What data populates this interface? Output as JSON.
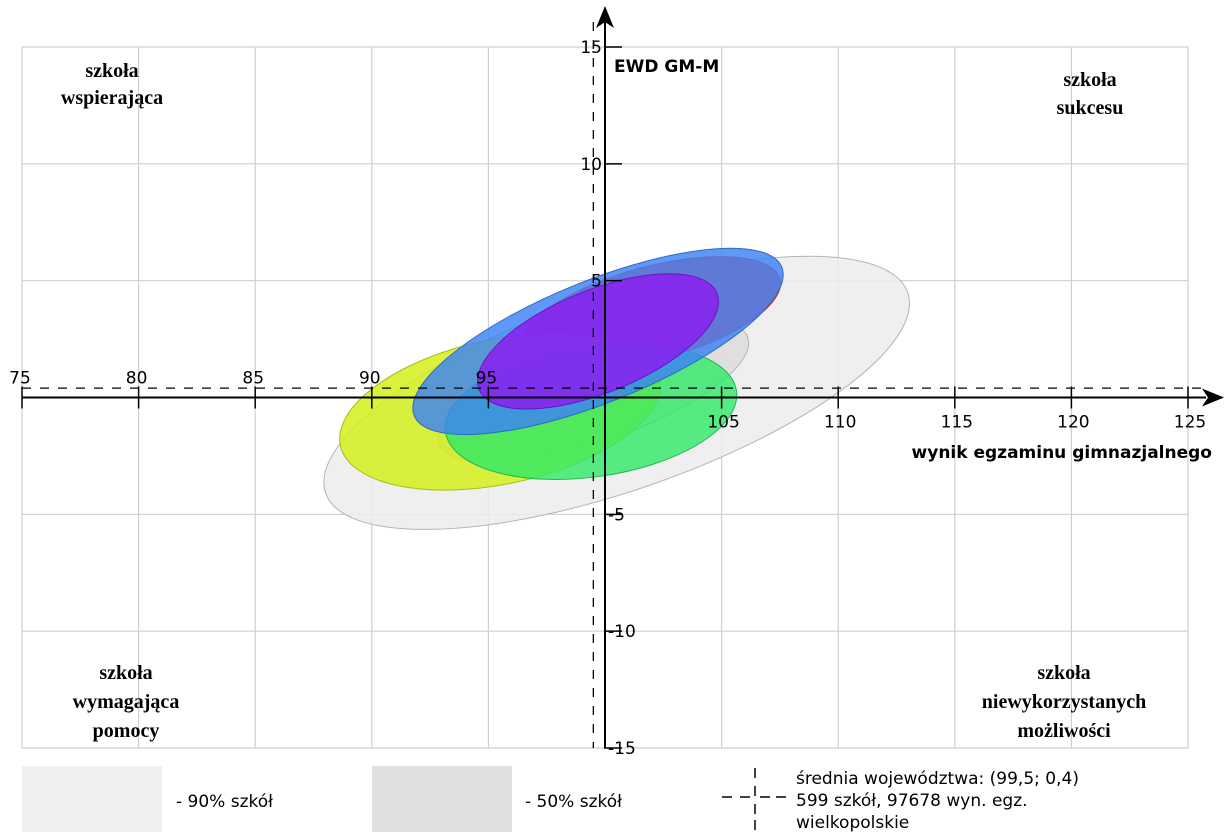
{
  "chart_data": {
    "type": "scatter",
    "xlabel": "wynik egzaminu gimnazjalnego",
    "ylabel": "EWD GM-M",
    "xlim": [
      75,
      125
    ],
    "ylim": [
      -15,
      15
    ],
    "x_ticks": [
      "75",
      "80",
      "85",
      "90",
      "95",
      "105",
      "110",
      "115",
      "120",
      "125"
    ],
    "y_ticks": [
      "15",
      "10",
      "5",
      "-5",
      "-10",
      "-15"
    ],
    "grid": true,
    "quadrant_labels": {
      "top_left": [
        "szkoła",
        "wspierająca"
      ],
      "top_right": [
        "szkoła",
        "sukcesu"
      ],
      "bottom_left": [
        "szkoła",
        "wymagająca",
        "pomocy"
      ],
      "bottom_right": [
        "szkoła",
        "niewykorzystanych",
        "możliwości"
      ]
    },
    "average": {
      "x": 99.5,
      "y": 0.4
    },
    "regions": [
      {
        "name": "90% szkół",
        "cx": 100.5,
        "cy": 0.2,
        "rx": 13.2,
        "ry": 4.2,
        "angle": 19,
        "color": "#ececec",
        "stroke": "#b4b4b4",
        "opacity": 0.85
      },
      {
        "name": "50% szkół",
        "cx": 99.5,
        "cy": 0.3,
        "rx": 7.0,
        "ry": 2.2,
        "angle": 19,
        "color": "#dcdcdc",
        "stroke": "#b4b4b4",
        "opacity": 0.85
      },
      {
        "cx": 102.0,
        "cy": 3.6,
        "rx": 5.7,
        "ry": 2.0,
        "angle": 15,
        "color": "#ff3b3b",
        "stroke": "#d83030",
        "opacity": 0.9
      },
      {
        "cx": 95.5,
        "cy": -0.6,
        "rx": 7.0,
        "ry": 3.1,
        "angle": 12,
        "color": "#d4ef1c",
        "stroke": "#a8bd18",
        "opacity": 0.85
      },
      {
        "cx": 99.4,
        "cy": -0.6,
        "rx": 6.3,
        "ry": 2.8,
        "angle": 8,
        "color": "#2ee866",
        "stroke": "#24b650",
        "opacity": 0.8
      },
      {
        "cx": 99.7,
        "cy": 2.4,
        "rx": 8.5,
        "ry": 2.6,
        "angle": 22,
        "color": "#3c82f5",
        "stroke": "#2f68c6",
        "opacity": 0.82
      },
      {
        "cx": 99.7,
        "cy": 2.4,
        "rx": 5.5,
        "ry": 2.2,
        "angle": 22,
        "color": "#8a1ef0",
        "stroke": "#6c16bd",
        "opacity": 0.85
      }
    ],
    "legend": {
      "items": [
        {
          "label": "- 90% szkół",
          "color": "#efefef"
        },
        {
          "label": "- 50% szkół",
          "color": "#e0e0e0"
        }
      ],
      "average_lines": [
        "średnia województwa: (99,5; 0,4)",
        "599 szkół, 97678 wyn. egz.",
        "wielkopolskie"
      ]
    }
  }
}
